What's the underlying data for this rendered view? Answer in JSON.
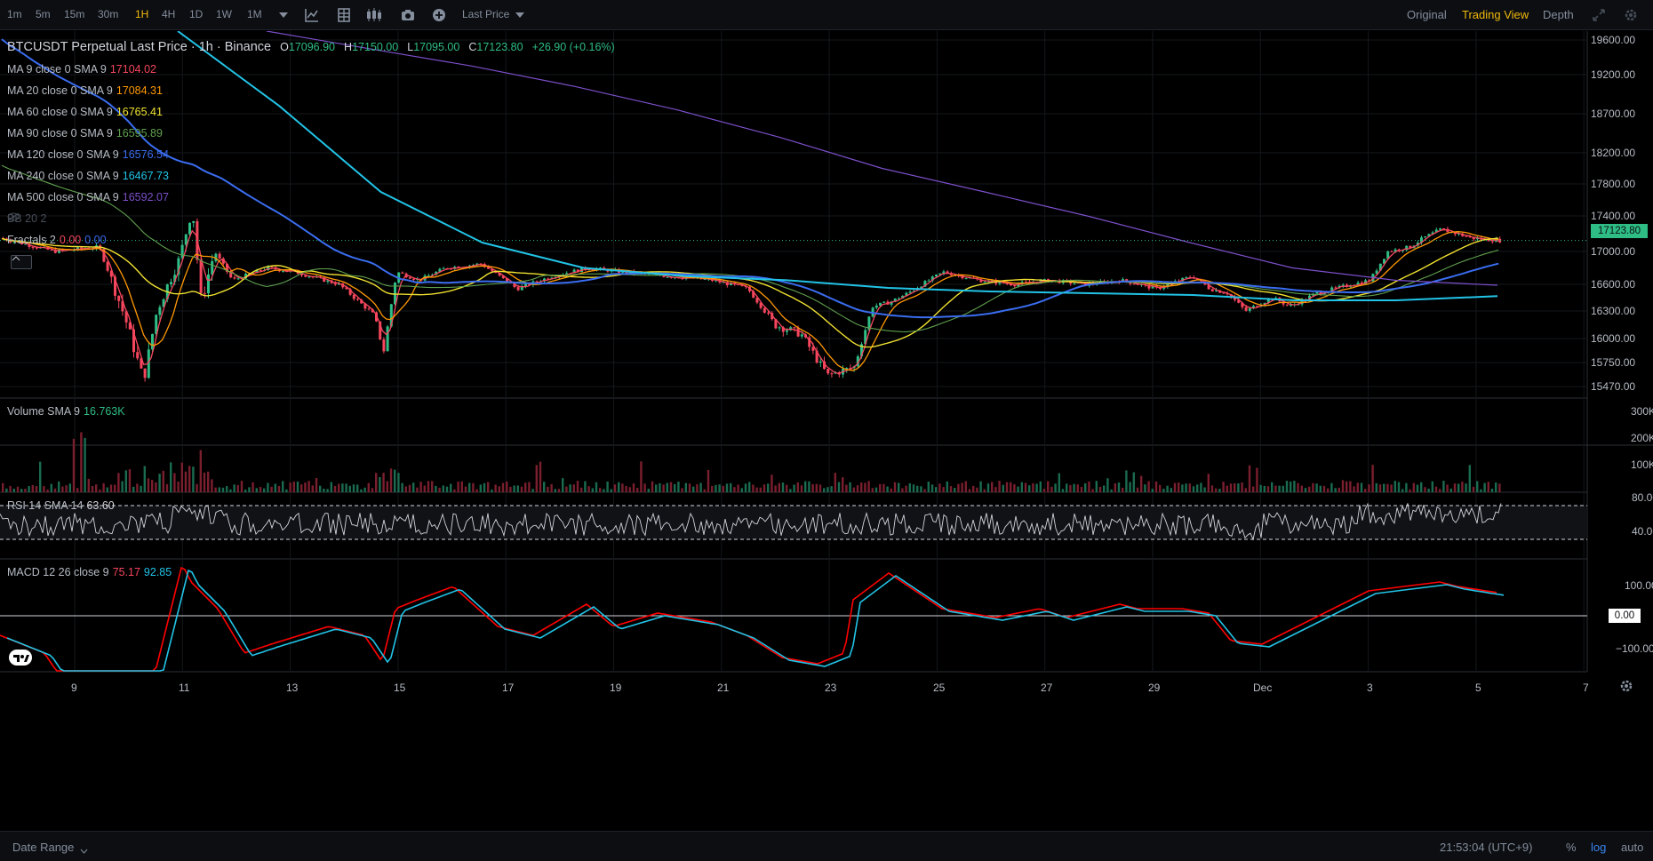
{
  "toolbar": {
    "timeframes": [
      "1m",
      "5m",
      "15m",
      "30m",
      "1H",
      "4H",
      "1D",
      "1W",
      "1M"
    ],
    "active_timeframe": "1H",
    "price_type": "Last Price",
    "views": [
      "Original",
      "Trading View",
      "Depth"
    ],
    "active_view": "Trading View"
  },
  "header": {
    "symbol": "BTCUSDT Perpetual Last Price · 1h · Binance",
    "o_label": "O",
    "o": "17096.90",
    "h_label": "H",
    "h": "17150.00",
    "l_label": "L",
    "l": "17095.00",
    "c_label": "C",
    "c": "17123.80",
    "change": "+26.90 (+0.16%)"
  },
  "indicators": [
    {
      "label": "MA 9 close 0 SMA 9",
      "value": "17104.02",
      "color": "#f6465d"
    },
    {
      "label": "MA 20 close 0 SMA 9",
      "value": "17084.31",
      "color": "#ff9800"
    },
    {
      "label": "MA 60 close 0 SMA 9",
      "value": "16765.41",
      "color": "#f0e130"
    },
    {
      "label": "MA 90 close 0 SMA 9",
      "value": "16595.89",
      "color": "#5fa04e"
    },
    {
      "label": "MA 120 close 0 SMA 9",
      "value": "16576.54",
      "color": "#3a6df0"
    },
    {
      "label": "MA 240 close 0 SMA 9",
      "value": "16467.73",
      "color": "#22c3e6"
    },
    {
      "label": "MA 500 close 0 SMA 9",
      "value": "16592.07",
      "color": "#7b4fc9"
    }
  ],
  "bb_label": "BB 20 2",
  "fractals": {
    "label": "Fractals 2",
    "v1": "0.00",
    "v2": "0.00"
  },
  "volume": {
    "label": "Volume SMA 9",
    "value": "16.763K"
  },
  "rsi": {
    "label": "RSI 14 SMA 14",
    "value": "63.60"
  },
  "macd": {
    "label": "MACD 12 26 close 9",
    "v1": "75.17",
    "v2": "92.85"
  },
  "price_axis": [
    "19600.00",
    "19200.00",
    "18700.00",
    "18200.00",
    "17800.00",
    "17400.00",
    "17000.00",
    "16600.00",
    "16300.00",
    "16000.00",
    "15750.00",
    "15470.00"
  ],
  "current_price_tag": "17123.80",
  "volume_axis": [
    "300K",
    "200K",
    "100K"
  ],
  "rsi_axis": [
    "80.00",
    "40.00"
  ],
  "macd_axis": [
    "100.00",
    "0.00",
    "−100.00"
  ],
  "date_axis": [
    "9",
    "11",
    "13",
    "15",
    "17",
    "19",
    "21",
    "23",
    "25",
    "27",
    "29",
    "Dec",
    "3",
    "5",
    "7"
  ],
  "bottom": {
    "date_range": "Date Range",
    "time": "21:53:04 (UTC+9)",
    "pct": "%",
    "log": "log",
    "auto": "auto"
  },
  "colors": {
    "up": "#2ebd85",
    "down": "#f6465d",
    "macd": "#ff0000",
    "signal": "#22c3e6",
    "accent": "#f0b90b"
  },
  "chart_data": {
    "type": "candlestick",
    "series": [
      {
        "name": "MA 60",
        "values": [
          17200,
          17000,
          16750,
          16700,
          16650,
          16600,
          16620,
          16400,
          16500,
          16530,
          16500,
          16380,
          16550,
          16765
        ]
      },
      {
        "name": "MA 240",
        "values": [
          19700,
          18800,
          17700,
          17100,
          16800,
          16700,
          16650,
          16560,
          16520,
          16500,
          16480,
          16420,
          16420,
          16467
        ]
      },
      {
        "name": "MA 500",
        "values": [
          19700,
          19500,
          19300,
          19050,
          18750,
          18400,
          18000,
          17700,
          17400,
          17100,
          16800,
          16650,
          16590
        ]
      }
    ],
    "ylim": [
      15300,
      19700
    ]
  }
}
